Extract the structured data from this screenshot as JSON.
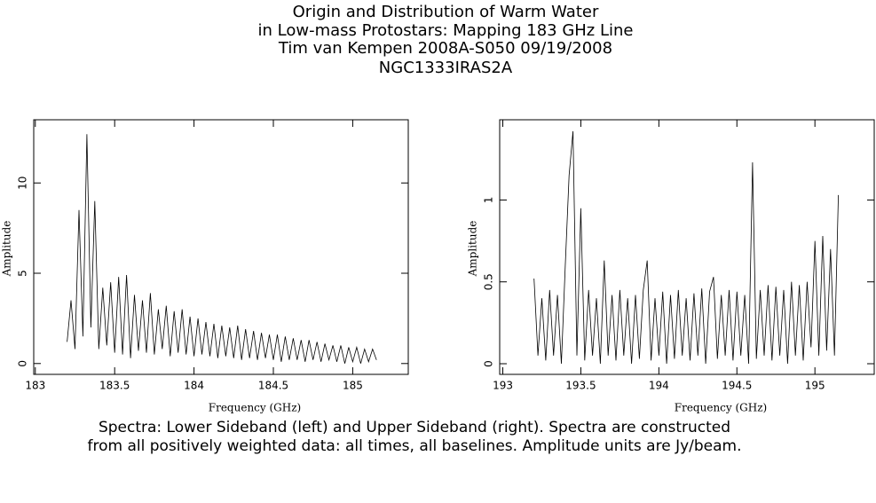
{
  "title": [
    "Origin and Distribution of Warm Water",
    "in Low-mass Protostars: Mapping 183 GHz Line",
    "Tim van Kempen   2008A-S050   09/19/2008",
    "NGC1333IRAS2A"
  ],
  "caption": [
    "Spectra: Lower Sideband (left) and Upper Sideband (right).  Spectra are constructed",
    "from all positively weighted data: all times, all baselines.  Amplitude units are Jy/beam."
  ],
  "chart_data": [
    {
      "type": "line",
      "xlabel": "Frequency (GHz)",
      "ylabel": "Amplitude",
      "xlim": [
        182.99,
        185.35
      ],
      "ylim": [
        -0.6,
        13.5
      ],
      "xticks": [
        183,
        183.5,
        184,
        184.5,
        185
      ],
      "yticks": [
        0,
        5,
        10
      ],
      "series": [
        {
          "name": "Lower Sideband",
          "color": "#000000",
          "x": [
            183.2,
            183.225,
            183.25,
            183.275,
            183.3,
            183.325,
            183.35,
            183.375,
            183.4,
            183.425,
            183.45,
            183.475,
            183.5,
            183.525,
            183.55,
            183.575,
            183.6,
            183.625,
            183.65,
            183.675,
            183.7,
            183.725,
            183.75,
            183.775,
            183.8,
            183.825,
            183.85,
            183.875,
            183.9,
            183.925,
            183.95,
            183.975,
            184.0,
            184.025,
            184.05,
            184.075,
            184.1,
            184.125,
            184.15,
            184.175,
            184.2,
            184.225,
            184.25,
            184.275,
            184.3,
            184.325,
            184.35,
            184.375,
            184.4,
            184.425,
            184.45,
            184.475,
            184.5,
            184.525,
            184.55,
            184.575,
            184.6,
            184.625,
            184.65,
            184.675,
            184.7,
            184.725,
            184.75,
            184.775,
            184.8,
            184.825,
            184.85,
            184.875,
            184.9,
            184.925,
            184.95,
            184.975,
            185.0,
            185.025,
            185.05,
            185.075,
            185.1,
            185.125,
            185.15
          ],
          "values": [
            1.2,
            3.5,
            0.8,
            8.5,
            1.5,
            12.7,
            2.0,
            9.0,
            0.8,
            4.2,
            1.0,
            4.5,
            0.6,
            4.8,
            0.5,
            4.9,
            0.3,
            3.8,
            0.7,
            3.5,
            0.6,
            3.9,
            0.5,
            3.0,
            0.8,
            3.2,
            0.4,
            2.9,
            0.6,
            3.0,
            0.5,
            2.6,
            0.4,
            2.5,
            0.5,
            2.3,
            0.4,
            2.2,
            0.3,
            2.1,
            0.4,
            2.0,
            0.3,
            2.1,
            0.2,
            1.9,
            0.3,
            1.8,
            0.2,
            1.7,
            0.3,
            1.6,
            0.2,
            1.6,
            0.1,
            1.5,
            0.2,
            1.4,
            0.2,
            1.3,
            0.1,
            1.3,
            0.2,
            1.2,
            0.1,
            1.1,
            0.2,
            1.0,
            0.1,
            1.0,
            0.0,
            0.9,
            0.1,
            0.9,
            0.0,
            0.8,
            0.1,
            0.8,
            0.2
          ]
        }
      ]
    },
    {
      "type": "line",
      "xlabel": "Frequency (GHz)",
      "ylabel": "Amplitude",
      "xlim": [
        192.98,
        195.38
      ],
      "ylim": [
        -0.065,
        1.49
      ],
      "xticks": [
        193,
        193.5,
        194,
        194.5,
        195
      ],
      "yticks": [
        0,
        0.5,
        1
      ],
      "series": [
        {
          "name": "Upper Sideband",
          "color": "#000000",
          "x": [
            193.2,
            193.225,
            193.25,
            193.275,
            193.3,
            193.325,
            193.35,
            193.375,
            193.4,
            193.425,
            193.45,
            193.475,
            193.5,
            193.525,
            193.55,
            193.575,
            193.6,
            193.625,
            193.65,
            193.675,
            193.7,
            193.725,
            193.75,
            193.775,
            193.8,
            193.825,
            193.85,
            193.875,
            193.9,
            193.925,
            193.95,
            193.975,
            194.0,
            194.025,
            194.05,
            194.075,
            194.1,
            194.125,
            194.15,
            194.175,
            194.2,
            194.225,
            194.25,
            194.275,
            194.3,
            194.325,
            194.35,
            194.375,
            194.4,
            194.425,
            194.45,
            194.475,
            194.5,
            194.525,
            194.55,
            194.575,
            194.6,
            194.625,
            194.65,
            194.675,
            194.7,
            194.725,
            194.75,
            194.775,
            194.8,
            194.825,
            194.85,
            194.875,
            194.9,
            194.925,
            194.95,
            194.975,
            195.0,
            195.025,
            195.05,
            195.075,
            195.1,
            195.125,
            195.15
          ],
          "values": [
            0.52,
            0.05,
            0.4,
            0.02,
            0.45,
            0.05,
            0.42,
            0.0,
            0.6,
            1.15,
            1.42,
            0.05,
            0.95,
            0.02,
            0.45,
            0.05,
            0.4,
            0.0,
            0.63,
            0.05,
            0.42,
            0.02,
            0.45,
            0.05,
            0.4,
            0.0,
            0.42,
            0.03,
            0.45,
            0.63,
            0.02,
            0.4,
            0.05,
            0.44,
            0.0,
            0.42,
            0.03,
            0.45,
            0.05,
            0.4,
            0.02,
            0.43,
            0.05,
            0.46,
            0.0,
            0.44,
            0.53,
            0.03,
            0.42,
            0.05,
            0.45,
            0.02,
            0.44,
            0.05,
            0.42,
            0.0,
            1.23,
            0.03,
            0.45,
            0.05,
            0.48,
            0.02,
            0.47,
            0.05,
            0.45,
            0.0,
            0.5,
            0.05,
            0.48,
            0.02,
            0.5,
            0.1,
            0.75,
            0.05,
            0.78,
            0.08,
            0.7,
            0.05,
            1.03
          ]
        }
      ]
    }
  ]
}
